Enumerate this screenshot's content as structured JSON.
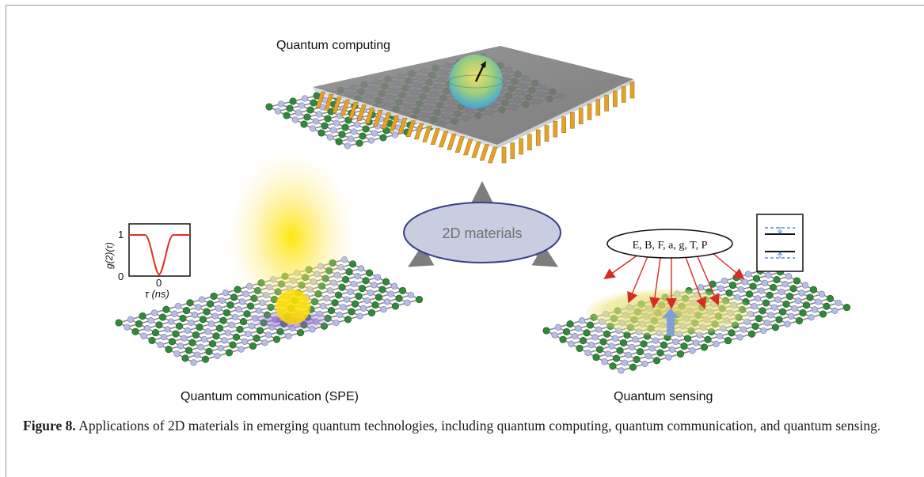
{
  "figure": {
    "center_label": "2D materials",
    "panels": {
      "computing": {
        "title": "Quantum computing"
      },
      "communication": {
        "title": "Quantum communication (SPE)"
      },
      "sensing": {
        "title": "Quantum sensing"
      }
    },
    "inset_plot": {
      "ylabel": "g(2)(τ)",
      "y_ticks": [
        "1",
        "0"
      ],
      "x_tick": "0",
      "xlabel": "τ (ns)",
      "curve_color": "#e0301e"
    },
    "sensing_quantities": "E, B, F, a, g, T, P",
    "colors": {
      "atom_green": "#2f8a3a",
      "atom_lavender": "#b9bde6",
      "ellipse_fill": "#c9cde0",
      "ellipse_stroke": "#3b3f8a",
      "gold": "#e3a22a",
      "arrow_red": "#d92b22"
    }
  },
  "caption": {
    "label": "Figure 8.",
    "text": "Applications of 2D materials in emerging quantum technologies, including quantum computing, quantum communication, and quantum sensing."
  }
}
